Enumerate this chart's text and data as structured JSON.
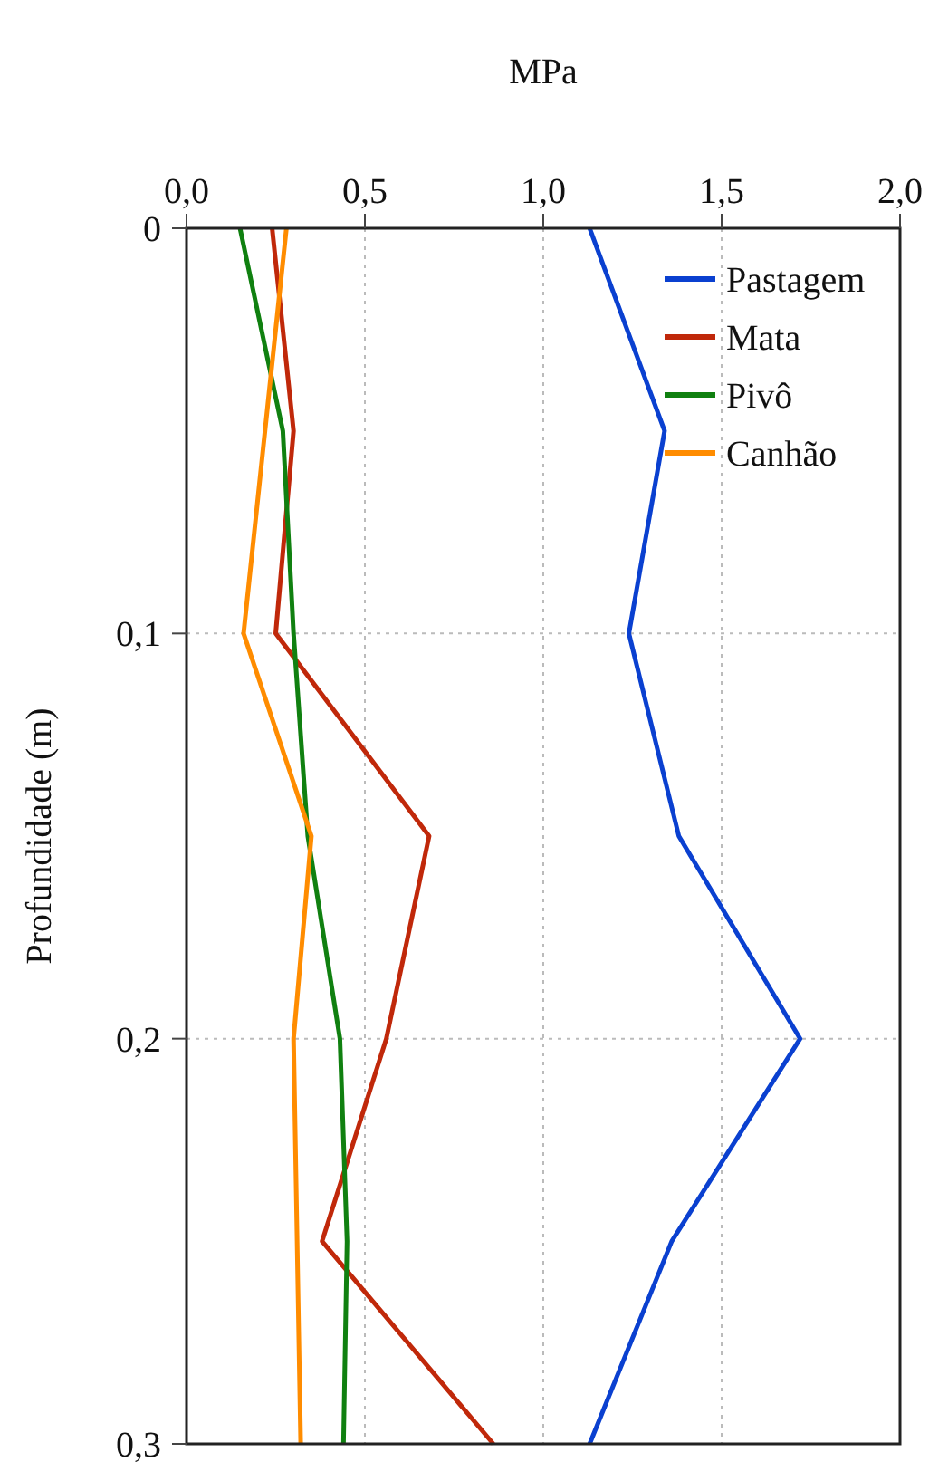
{
  "chart_data": {
    "type": "line",
    "xlabel": "MPa",
    "ylabel": "Profundidade (m)",
    "xlim": [
      0,
      2
    ],
    "xticks": [
      {
        "value": 0,
        "label": "0,0"
      },
      {
        "value": 0.5,
        "label": "0,5"
      },
      {
        "value": 1,
        "label": "1,0"
      },
      {
        "value": 1.5,
        "label": "1,5"
      },
      {
        "value": 2,
        "label": "2,0"
      }
    ],
    "ylim": [
      0.3,
      0
    ],
    "yticks": [
      {
        "value": 0,
        "label": "0"
      },
      {
        "value": 0.1,
        "label": "0,1"
      },
      {
        "value": 0.2,
        "label": "0,2"
      },
      {
        "value": 0.3,
        "label": "0,3"
      }
    ],
    "grid": true,
    "legend": "top right",
    "marker": "none",
    "line_style": "solid",
    "series": [
      {
        "name": "Pastagem",
        "color": "#0a40d0",
        "x": [
          1.13,
          1.34,
          1.24,
          1.38,
          1.72,
          1.36,
          1.13
        ],
        "values": [
          0,
          0.05,
          0.1,
          0.15,
          0.2,
          0.25,
          0.3
        ]
      },
      {
        "name": "Mata",
        "color": "#c0280a",
        "x": [
          0.24,
          0.3,
          0.25,
          0.68,
          0.56,
          0.38,
          0.86
        ],
        "values": [
          0,
          0.05,
          0.1,
          0.15,
          0.2,
          0.25,
          0.3
        ]
      },
      {
        "name": "Pivô",
        "color": "#108010",
        "x": [
          0.15,
          0.27,
          0.3,
          0.34,
          0.43,
          0.45,
          0.44
        ],
        "values": [
          0,
          0.05,
          0.1,
          0.15,
          0.2,
          0.25,
          0.3
        ]
      },
      {
        "name": "Canhão",
        "color": "#ff8c00",
        "x": [
          0.28,
          0.22,
          0.16,
          0.35,
          0.3,
          0.31,
          0.32
        ],
        "values": [
          0,
          0.05,
          0.1,
          0.15,
          0.2,
          0.25,
          0.3
        ]
      }
    ]
  }
}
